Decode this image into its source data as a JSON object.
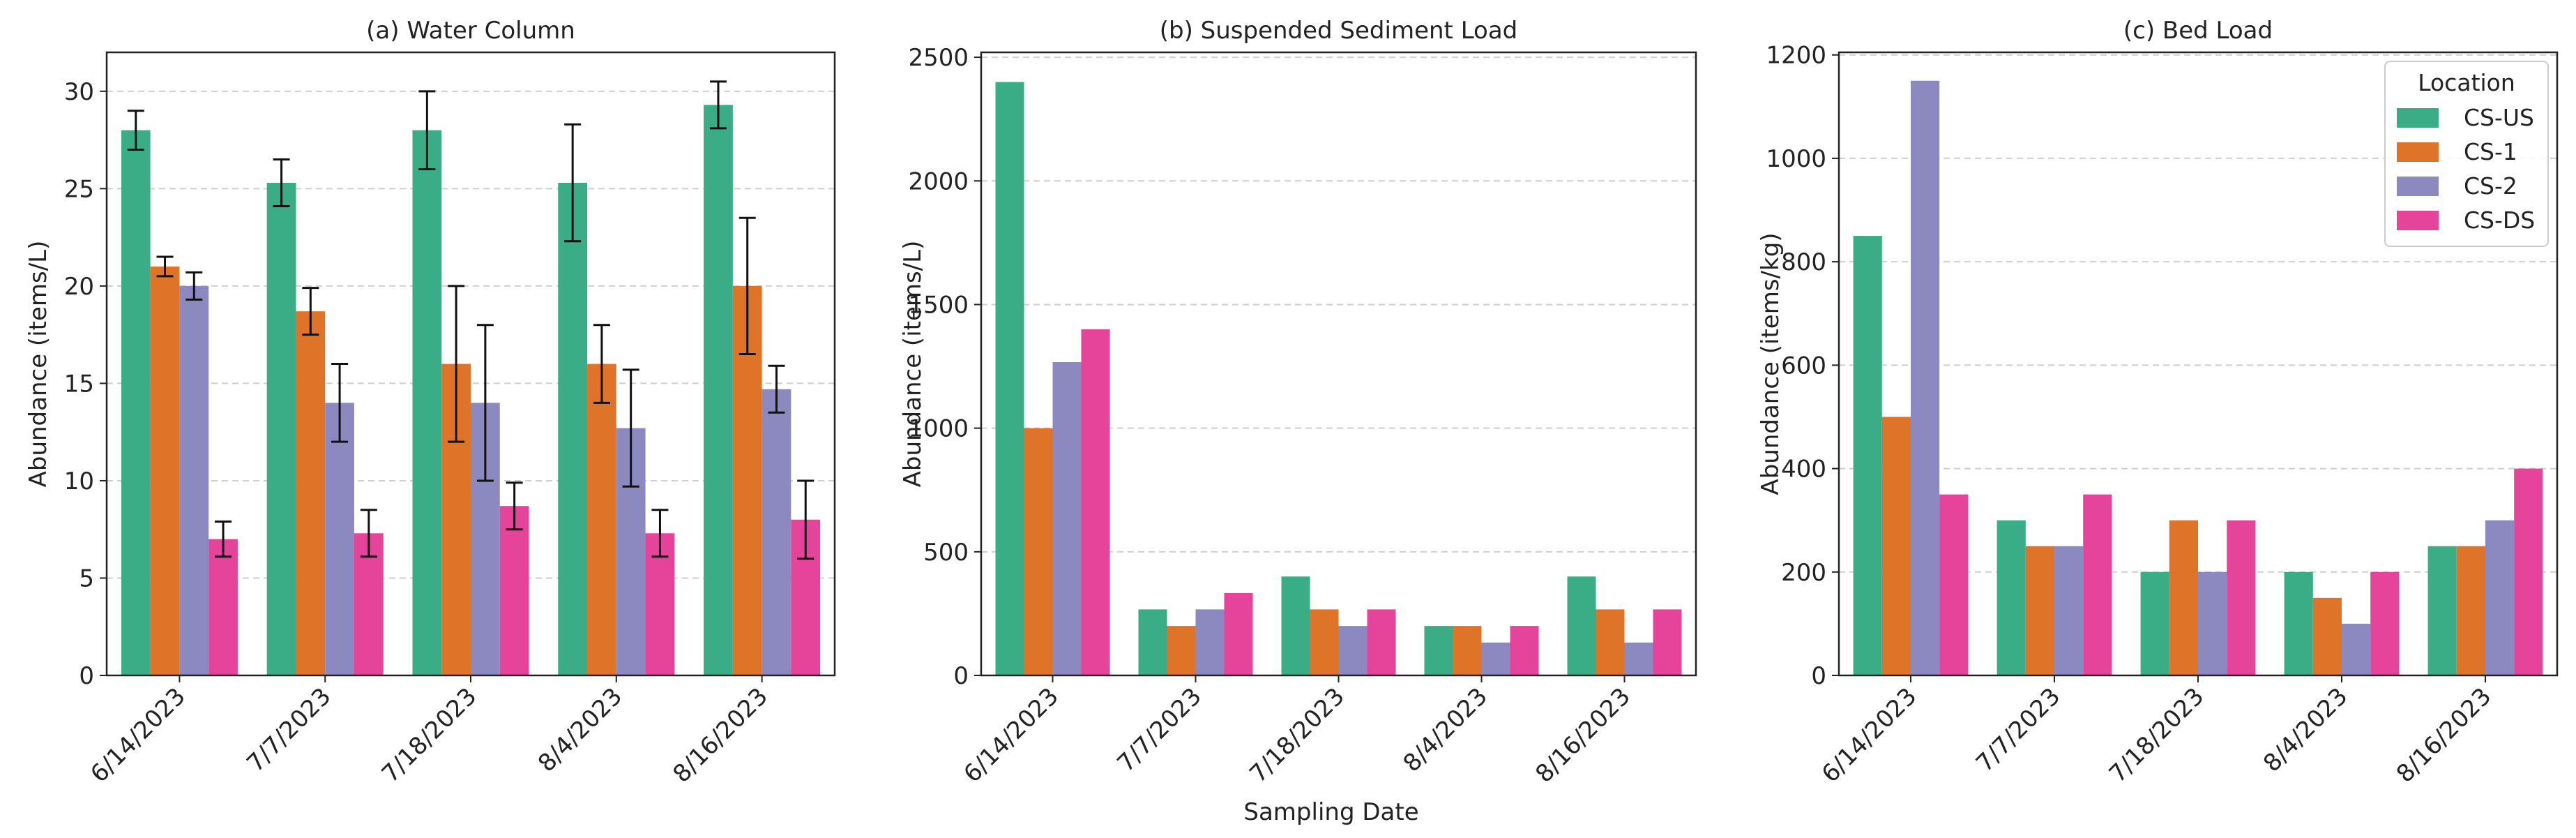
{
  "colors": {
    "CS-US": "#3aac86",
    "CS-1": "#df7428",
    "CS-2": "#8c89c0",
    "CS-DS": "#e6439a",
    "error_bar": "#111111",
    "grid": "#cfcfcf",
    "axis": "#222222"
  },
  "shared_xlabel": "Sampling Date",
  "legend": {
    "title": "Location",
    "placement": "top-right of panel (c)",
    "entries": [
      "CS-US",
      "CS-1",
      "CS-2",
      "CS-DS"
    ]
  },
  "chart_data": [
    {
      "type": "bar",
      "title": "(a) Water Column",
      "xlabel": "",
      "ylabel": "Abundance (items/L)",
      "ylim": [
        0,
        32
      ],
      "yticks": [
        0,
        5,
        10,
        15,
        20,
        25,
        30
      ],
      "grid": "y dashed",
      "categories": [
        "6/14/2023",
        "7/7/2023",
        "7/18/2023",
        "8/4/2023",
        "8/16/2023"
      ],
      "series": [
        {
          "name": "CS-US",
          "values": [
            28.0,
            25.3,
            28.0,
            25.3,
            29.3
          ],
          "errors": [
            1.0,
            1.2,
            2.0,
            3.0,
            1.2
          ]
        },
        {
          "name": "CS-1",
          "values": [
            21.0,
            18.7,
            16.0,
            16.0,
            20.0
          ],
          "errors": [
            0.5,
            1.2,
            4.0,
            2.0,
            3.5
          ]
        },
        {
          "name": "CS-2",
          "values": [
            20.0,
            14.0,
            14.0,
            12.7,
            14.7
          ],
          "errors": [
            0.7,
            2.0,
            4.0,
            3.0,
            1.2
          ]
        },
        {
          "name": "CS-DS",
          "values": [
            7.0,
            7.3,
            8.7,
            7.3,
            8.0
          ],
          "errors": [
            0.9,
            1.2,
            1.2,
            1.2,
            2.0
          ]
        }
      ]
    },
    {
      "type": "bar",
      "title": "(b) Suspended Sediment Load",
      "xlabel": "Sampling Date",
      "ylabel": "Abundance (items/L)",
      "ylim": [
        0,
        2520
      ],
      "yticks": [
        0,
        500,
        1000,
        1500,
        2000,
        2500
      ],
      "grid": "y dashed",
      "categories": [
        "6/14/2023",
        "7/7/2023",
        "7/18/2023",
        "8/4/2023",
        "8/16/2023"
      ],
      "series": [
        {
          "name": "CS-US",
          "values": [
            2400,
            267,
            400,
            200,
            400
          ]
        },
        {
          "name": "CS-1",
          "values": [
            1000,
            200,
            267,
            200,
            267
          ]
        },
        {
          "name": "CS-2",
          "values": [
            1267,
            267,
            200,
            133,
            133
          ]
        },
        {
          "name": "CS-DS",
          "values": [
            1400,
            333,
            267,
            200,
            267
          ]
        }
      ]
    },
    {
      "type": "bar",
      "title": "(c) Bed Load",
      "xlabel": "",
      "ylabel": "Abundance (items/kg)",
      "ylim": [
        0,
        1205
      ],
      "yticks": [
        0,
        200,
        400,
        600,
        800,
        1000,
        1200
      ],
      "grid": "y dashed",
      "categories": [
        "6/14/2023",
        "7/7/2023",
        "7/18/2023",
        "8/4/2023",
        "8/16/2023"
      ],
      "series": [
        {
          "name": "CS-US",
          "values": [
            850,
            300,
            200,
            200,
            250
          ]
        },
        {
          "name": "CS-1",
          "values": [
            500,
            250,
            300,
            150,
            250
          ]
        },
        {
          "name": "CS-2",
          "values": [
            1150,
            250,
            200,
            100,
            300
          ]
        },
        {
          "name": "CS-DS",
          "values": [
            350,
            350,
            300,
            200,
            400
          ]
        }
      ]
    }
  ]
}
